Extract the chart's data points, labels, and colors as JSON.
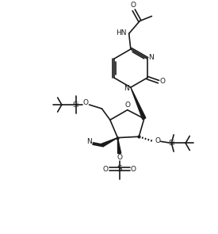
{
  "bg_color": "#ffffff",
  "line_color": "#1a1a1a",
  "lw": 1.2,
  "figsize": [
    2.75,
    2.95
  ],
  "dpi": 100,
  "xlim": [
    0,
    10
  ],
  "ylim": [
    0,
    10.7
  ]
}
